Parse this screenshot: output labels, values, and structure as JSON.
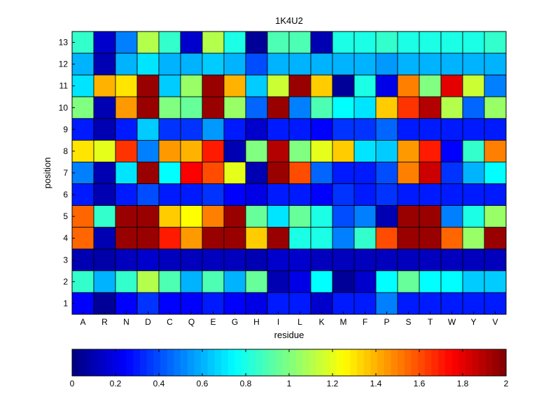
{
  "chart_data": {
    "type": "heatmap",
    "title": "1K4U2",
    "xlabel": "residue",
    "ylabel": "position",
    "x_categories": [
      "A",
      "R",
      "N",
      "D",
      "C",
      "Q",
      "E",
      "G",
      "H",
      "I",
      "L",
      "K",
      "M",
      "F",
      "P",
      "S",
      "T",
      "W",
      "Y",
      "V"
    ],
    "y_categories": [
      "13",
      "12",
      "11",
      "10",
      "9",
      "8",
      "7",
      "6",
      "5",
      "4",
      "3",
      "2",
      "1"
    ],
    "values": [
      [
        0.85,
        0.15,
        0.5,
        1.1,
        0.85,
        0.15,
        1.1,
        0.8,
        0.05,
        0.9,
        0.9,
        0.1,
        0.8,
        0.8,
        0.85,
        0.8,
        0.8,
        0.8,
        0.8,
        0.85
      ],
      [
        0.6,
        0.1,
        0.6,
        0.7,
        0.6,
        0.6,
        0.65,
        0.6,
        0.4,
        0.6,
        0.6,
        0.6,
        0.6,
        0.6,
        0.55,
        0.6,
        0.6,
        0.6,
        0.6,
        0.6
      ],
      [
        0.7,
        1.4,
        1.3,
        1.95,
        0.65,
        1.05,
        1.95,
        1.4,
        0.65,
        1.15,
        1.95,
        1.35,
        0.05,
        0.8,
        0.2,
        1.5,
        1.0,
        1.8,
        1.15,
        0.5
      ],
      [
        1.0,
        0.1,
        1.45,
        1.95,
        1.0,
        0.95,
        1.95,
        1.05,
        0.45,
        1.95,
        0.5,
        0.9,
        0.75,
        0.7,
        1.35,
        1.65,
        1.9,
        1.1,
        0.45,
        1.05
      ],
      [
        0.3,
        0.1,
        0.3,
        0.65,
        0.35,
        0.35,
        0.55,
        0.3,
        0.15,
        0.3,
        0.3,
        0.25,
        0.35,
        0.35,
        0.45,
        0.3,
        0.3,
        0.3,
        0.3,
        0.3
      ],
      [
        1.3,
        1.2,
        1.65,
        0.5,
        1.45,
        1.4,
        1.7,
        0.1,
        1.0,
        1.9,
        1.0,
        1.2,
        1.35,
        0.7,
        0.65,
        1.45,
        1.7,
        0.25,
        0.85,
        1.5
      ],
      [
        0.5,
        0.1,
        0.7,
        1.95,
        0.75,
        1.75,
        1.6,
        1.2,
        0.1,
        1.95,
        1.6,
        0.45,
        0.3,
        0.3,
        0.4,
        1.5,
        1.85,
        0.35,
        0.6,
        0.75
      ],
      [
        0.3,
        0.1,
        0.3,
        0.4,
        0.3,
        0.3,
        0.35,
        0.25,
        0.2,
        0.3,
        0.3,
        0.25,
        0.35,
        0.3,
        0.35,
        0.3,
        0.3,
        0.3,
        0.3,
        0.3
      ],
      [
        1.55,
        0.85,
        1.95,
        1.95,
        1.35,
        1.25,
        1.5,
        1.95,
        0.95,
        0.7,
        0.95,
        0.8,
        0.4,
        0.5,
        0.1,
        1.95,
        1.95,
        0.5,
        0.8,
        1.05
      ],
      [
        1.55,
        0.1,
        1.95,
        1.95,
        1.7,
        1.45,
        1.95,
        1.95,
        1.35,
        1.95,
        0.8,
        0.8,
        0.5,
        0.85,
        1.6,
        1.95,
        1.95,
        1.55,
        1.05,
        1.95
      ],
      [
        0.1,
        0.08,
        0.12,
        0.15,
        0.12,
        0.12,
        0.12,
        0.12,
        0.1,
        0.15,
        0.15,
        0.12,
        0.12,
        0.12,
        0.12,
        0.12,
        0.12,
        0.12,
        0.12,
        0.12
      ],
      [
        0.85,
        0.6,
        0.85,
        1.1,
        0.9,
        0.6,
        0.9,
        0.6,
        0.95,
        0.1,
        0.2,
        0.75,
        0.05,
        0.15,
        0.75,
        0.95,
        0.75,
        0.75,
        0.65,
        0.65
      ],
      [
        0.25,
        0.05,
        0.25,
        0.35,
        0.25,
        0.25,
        0.3,
        0.25,
        0.2,
        0.3,
        0.3,
        0.15,
        0.3,
        0.3,
        0.5,
        0.3,
        0.3,
        0.3,
        0.3,
        0.3
      ]
    ],
    "colormap": "jet",
    "clim": [
      0,
      2
    ],
    "colorbar": {
      "orientation": "horizontal",
      "ticks": [
        0,
        0.2,
        0.4,
        0.6,
        0.8,
        1,
        1.2,
        1.4,
        1.6,
        1.8,
        2
      ],
      "tick_labels": [
        "0",
        "0.2",
        "0.4",
        "0.6",
        "0.8",
        "1",
        "1.2",
        "1.4",
        "1.6",
        "1.8",
        "2"
      ]
    },
    "grid": true,
    "legend": "none"
  }
}
